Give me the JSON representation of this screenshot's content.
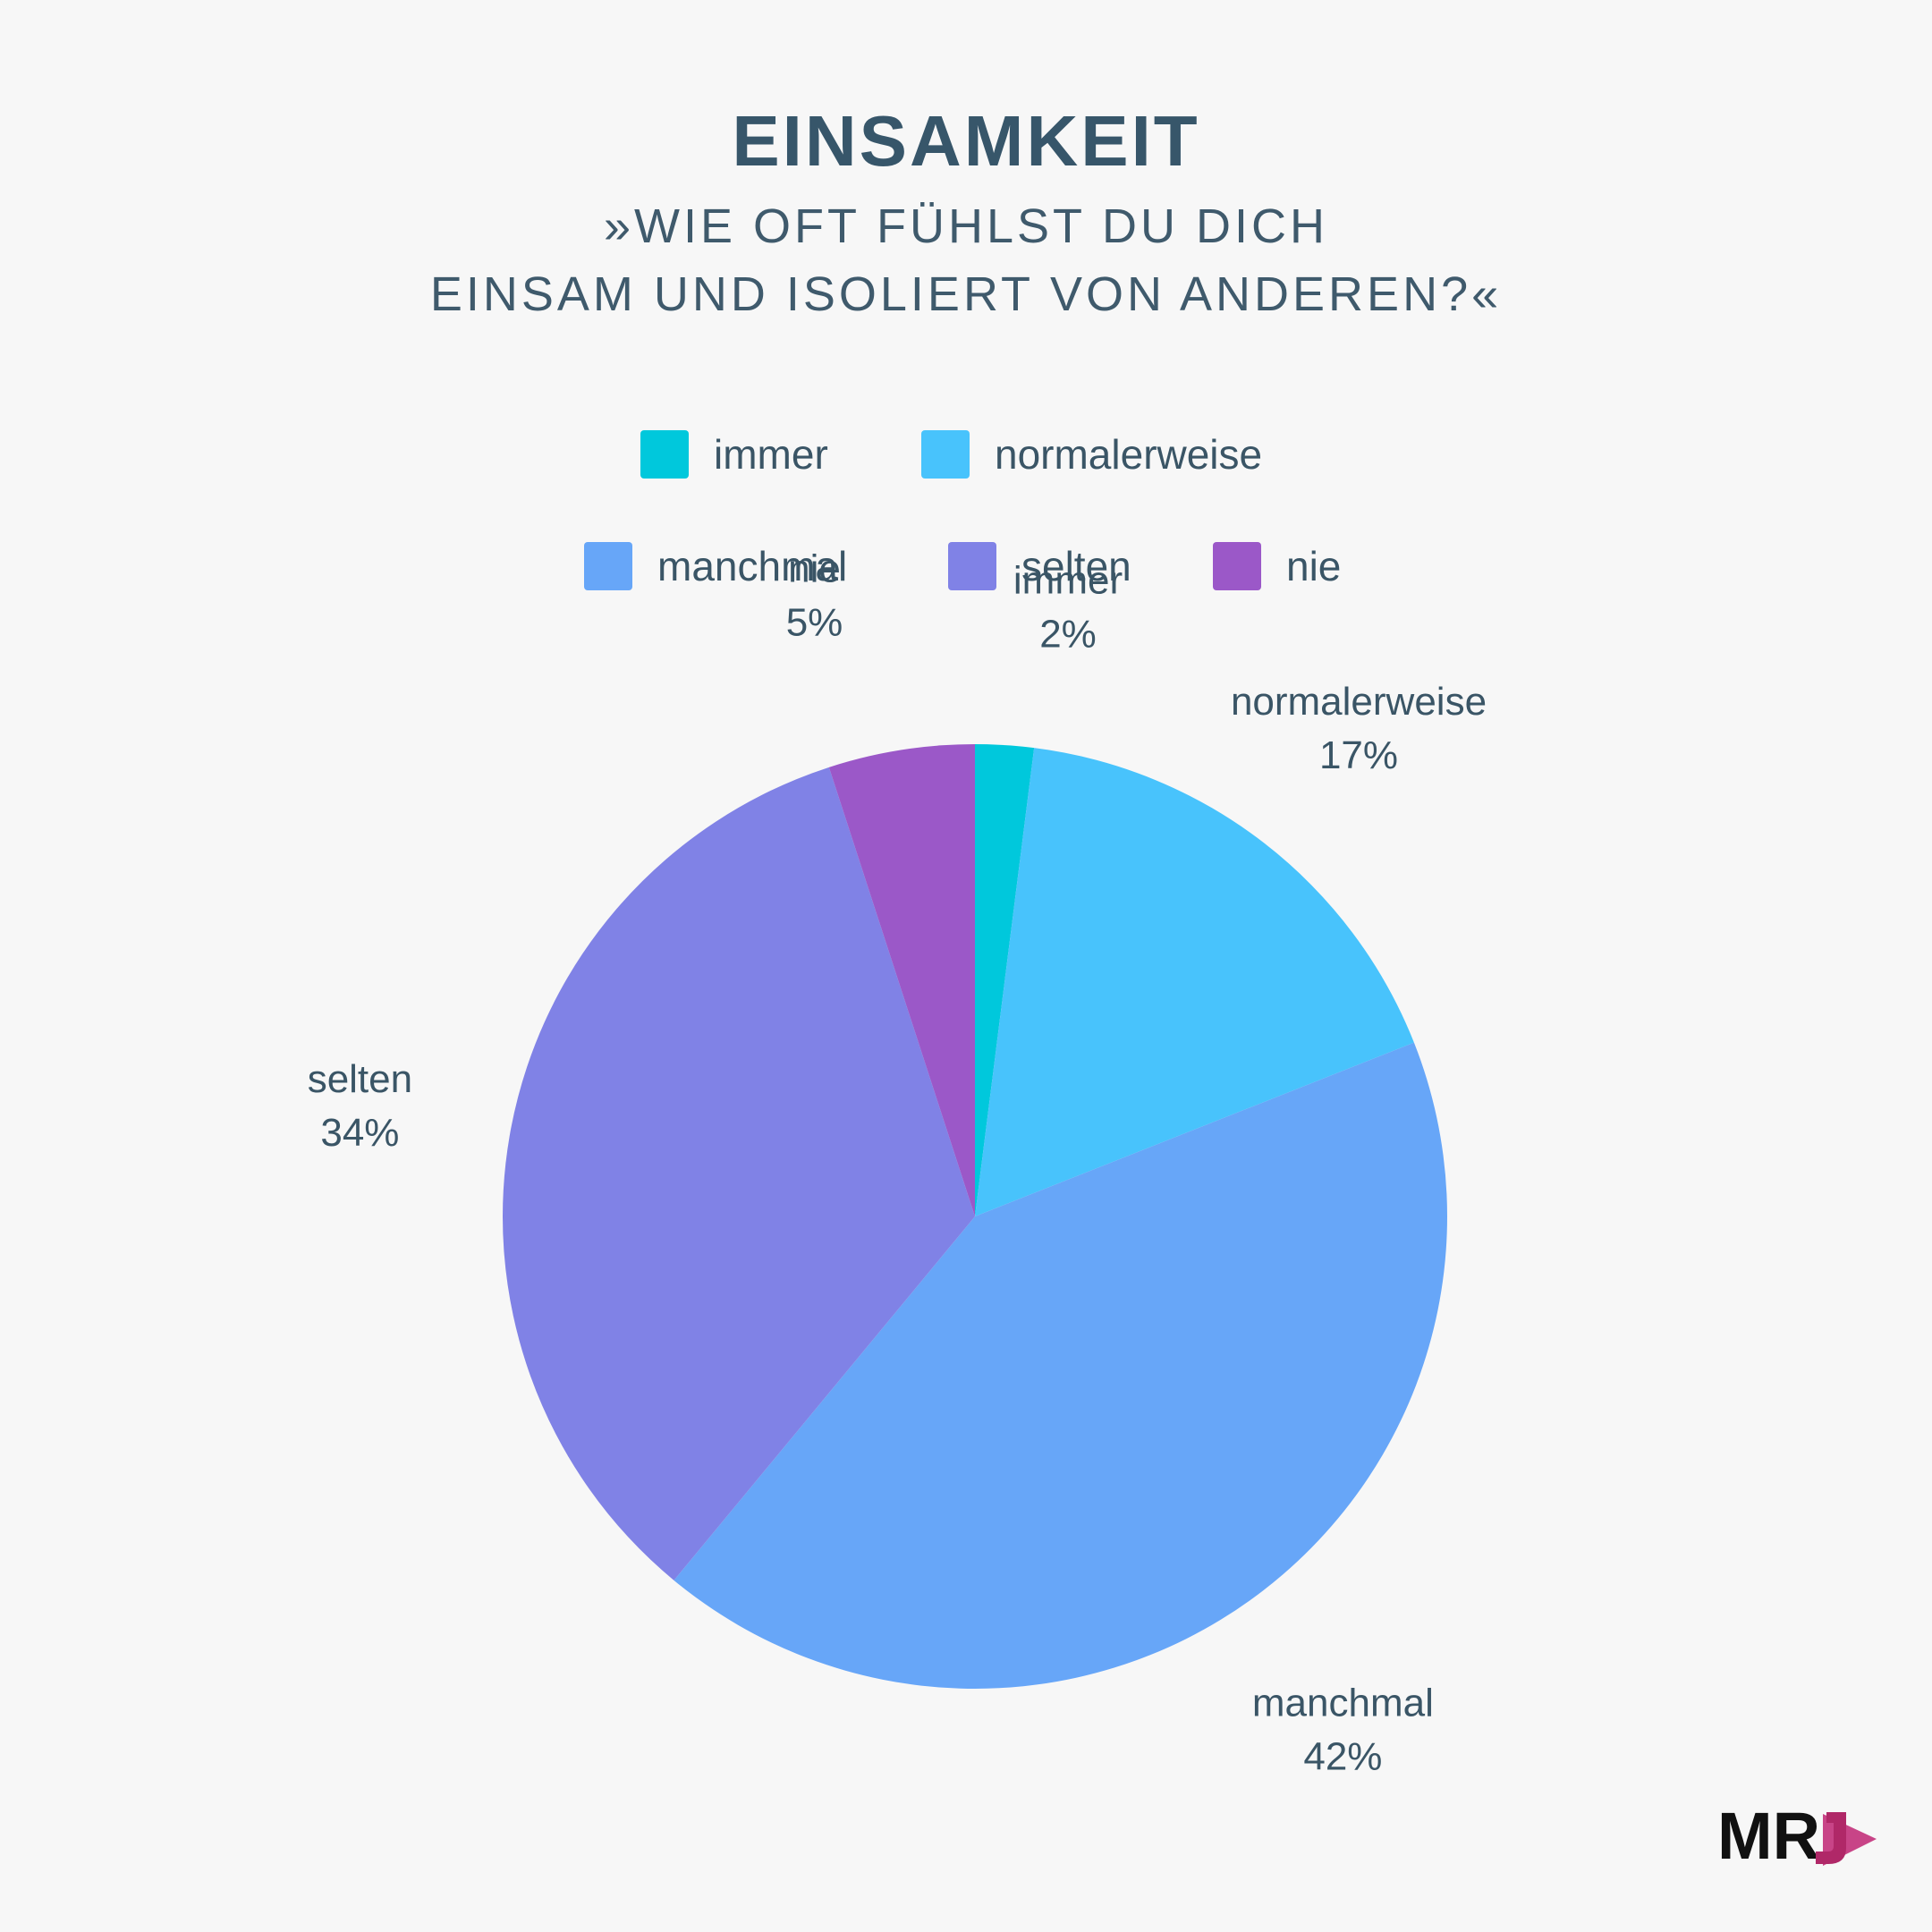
{
  "header": {
    "title": "EINSAMKEIT",
    "subtitle_line1": "»WIE OFT FÜHLST DU DICH",
    "subtitle_line2": "EINSAM UND ISOLIERT VON ANDEREN?«"
  },
  "logo": {
    "text": "MRJ",
    "accent_color": "#c2307a"
  },
  "chart_data": {
    "type": "pie",
    "title": "EINSAMKEIT",
    "subtitle": "»WIE OFT FÜHLST DU DICH EINSAM UND ISOLIERT VON ANDEREN?«",
    "legend_placement": "top",
    "start_angle": "12 o'clock",
    "direction": "clockwise",
    "slices": [
      {
        "label": "immer",
        "value": 2,
        "value_label": "2%",
        "color": "#00c8dc"
      },
      {
        "label": "normalerweise",
        "value": 17,
        "value_label": "17%",
        "color": "#48c3fc"
      },
      {
        "label": "manchmal",
        "value": 42,
        "value_label": "42%",
        "color": "#67a6f8"
      },
      {
        "label": "selten",
        "value": 34,
        "value_label": "34%",
        "color": "#8082e6"
      },
      {
        "label": "nie",
        "value": 5,
        "value_label": "5%",
        "color": "#9b58c8"
      }
    ]
  }
}
